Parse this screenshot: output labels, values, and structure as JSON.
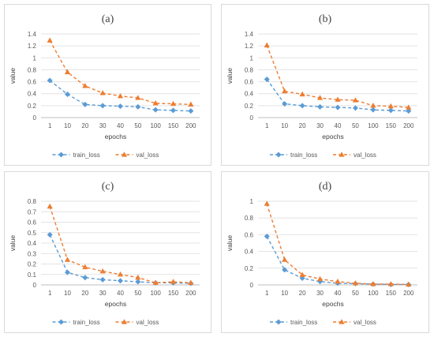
{
  "chart_data": [
    {
      "type": "line",
      "title": "(a)",
      "xlabel": "epochs",
      "ylabel": "value",
      "categories": [
        "1",
        "10",
        "20",
        "30",
        "40",
        "50",
        "100",
        "150",
        "200"
      ],
      "ylim": [
        0,
        1.4
      ],
      "yticks": [
        "0",
        "0.2",
        "0.4",
        "0.6",
        "0.8",
        "1",
        "1.2",
        "1.4"
      ],
      "ytick_values": [
        0,
        0.2,
        0.4,
        0.6,
        0.8,
        1,
        1.2,
        1.4
      ],
      "grid": true,
      "legend_position": "bottom",
      "series": [
        {
          "name": "train_loss",
          "color": "#5b9bd5",
          "marker": "diamond",
          "values": [
            0.62,
            0.39,
            0.22,
            0.2,
            0.19,
            0.18,
            0.13,
            0.12,
            0.11
          ]
        },
        {
          "name": "val_loss",
          "color": "#ed7d31",
          "marker": "triangle",
          "values": [
            1.29,
            0.76,
            0.53,
            0.41,
            0.36,
            0.33,
            0.24,
            0.23,
            0.22
          ]
        }
      ]
    },
    {
      "type": "line",
      "title": "(b)",
      "xlabel": "epochs",
      "ylabel": "value",
      "categories": [
        "1",
        "10",
        "20",
        "30",
        "40",
        "50",
        "100",
        "150",
        "200"
      ],
      "ylim": [
        0,
        1.4
      ],
      "yticks": [
        "0",
        "0.2",
        "0.4",
        "0.6",
        "0.8",
        "1",
        "1.2",
        "1.4"
      ],
      "ytick_values": [
        0,
        0.2,
        0.4,
        0.6,
        0.8,
        1,
        1.2,
        1.4
      ],
      "grid": true,
      "legend_position": "bottom",
      "series": [
        {
          "name": "train_loss",
          "color": "#5b9bd5",
          "marker": "diamond",
          "values": [
            0.64,
            0.23,
            0.2,
            0.18,
            0.17,
            0.16,
            0.13,
            0.12,
            0.11
          ]
        },
        {
          "name": "val_loss",
          "color": "#ed7d31",
          "marker": "triangle",
          "values": [
            1.21,
            0.44,
            0.39,
            0.33,
            0.3,
            0.29,
            0.2,
            0.19,
            0.17
          ]
        }
      ]
    },
    {
      "type": "line",
      "title": "(c)",
      "xlabel": "epochs",
      "ylabel": "value",
      "categories": [
        "1",
        "10",
        "20",
        "30",
        "40",
        "50",
        "100",
        "150",
        "200"
      ],
      "ylim": [
        0,
        0.8
      ],
      "yticks": [
        "0",
        "0.1",
        "0.2",
        "0.3",
        "0.4",
        "0.5",
        "0.6",
        "0.7",
        "0.8"
      ],
      "ytick_values": [
        0,
        0.1,
        0.2,
        0.3,
        0.4,
        0.5,
        0.6,
        0.7,
        0.8
      ],
      "grid": true,
      "legend_position": "bottom",
      "series": [
        {
          "name": "train_loss",
          "color": "#5b9bd5",
          "marker": "diamond",
          "values": [
            0.48,
            0.12,
            0.07,
            0.05,
            0.04,
            0.03,
            0.02,
            0.02,
            0.015
          ]
        },
        {
          "name": "val_loss",
          "color": "#ed7d31",
          "marker": "triangle",
          "values": [
            0.75,
            0.24,
            0.17,
            0.13,
            0.1,
            0.07,
            0.02,
            0.03,
            0.02
          ]
        }
      ]
    },
    {
      "type": "line",
      "title": "(d)",
      "xlabel": "epochs",
      "ylabel": "value",
      "categories": [
        "1",
        "10",
        "20",
        "30",
        "40",
        "50",
        "100",
        "150",
        "200"
      ],
      "ylim": [
        0,
        1
      ],
      "yticks": [
        "0",
        "0.2",
        "0.4",
        "0.6",
        "0.8",
        "1"
      ],
      "ytick_values": [
        0,
        0.2,
        0.4,
        0.6,
        0.8,
        1
      ],
      "grid": true,
      "legend_position": "bottom",
      "series": [
        {
          "name": "train_loss",
          "color": "#5b9bd5",
          "marker": "diamond",
          "values": [
            0.58,
            0.18,
            0.08,
            0.04,
            0.02,
            0.015,
            0.01,
            0.005,
            0.005
          ]
        },
        {
          "name": "val_loss",
          "color": "#ed7d31",
          "marker": "triangle",
          "values": [
            0.97,
            0.3,
            0.12,
            0.07,
            0.04,
            0.02,
            0.01,
            0.01,
            0.005
          ]
        }
      ]
    }
  ]
}
